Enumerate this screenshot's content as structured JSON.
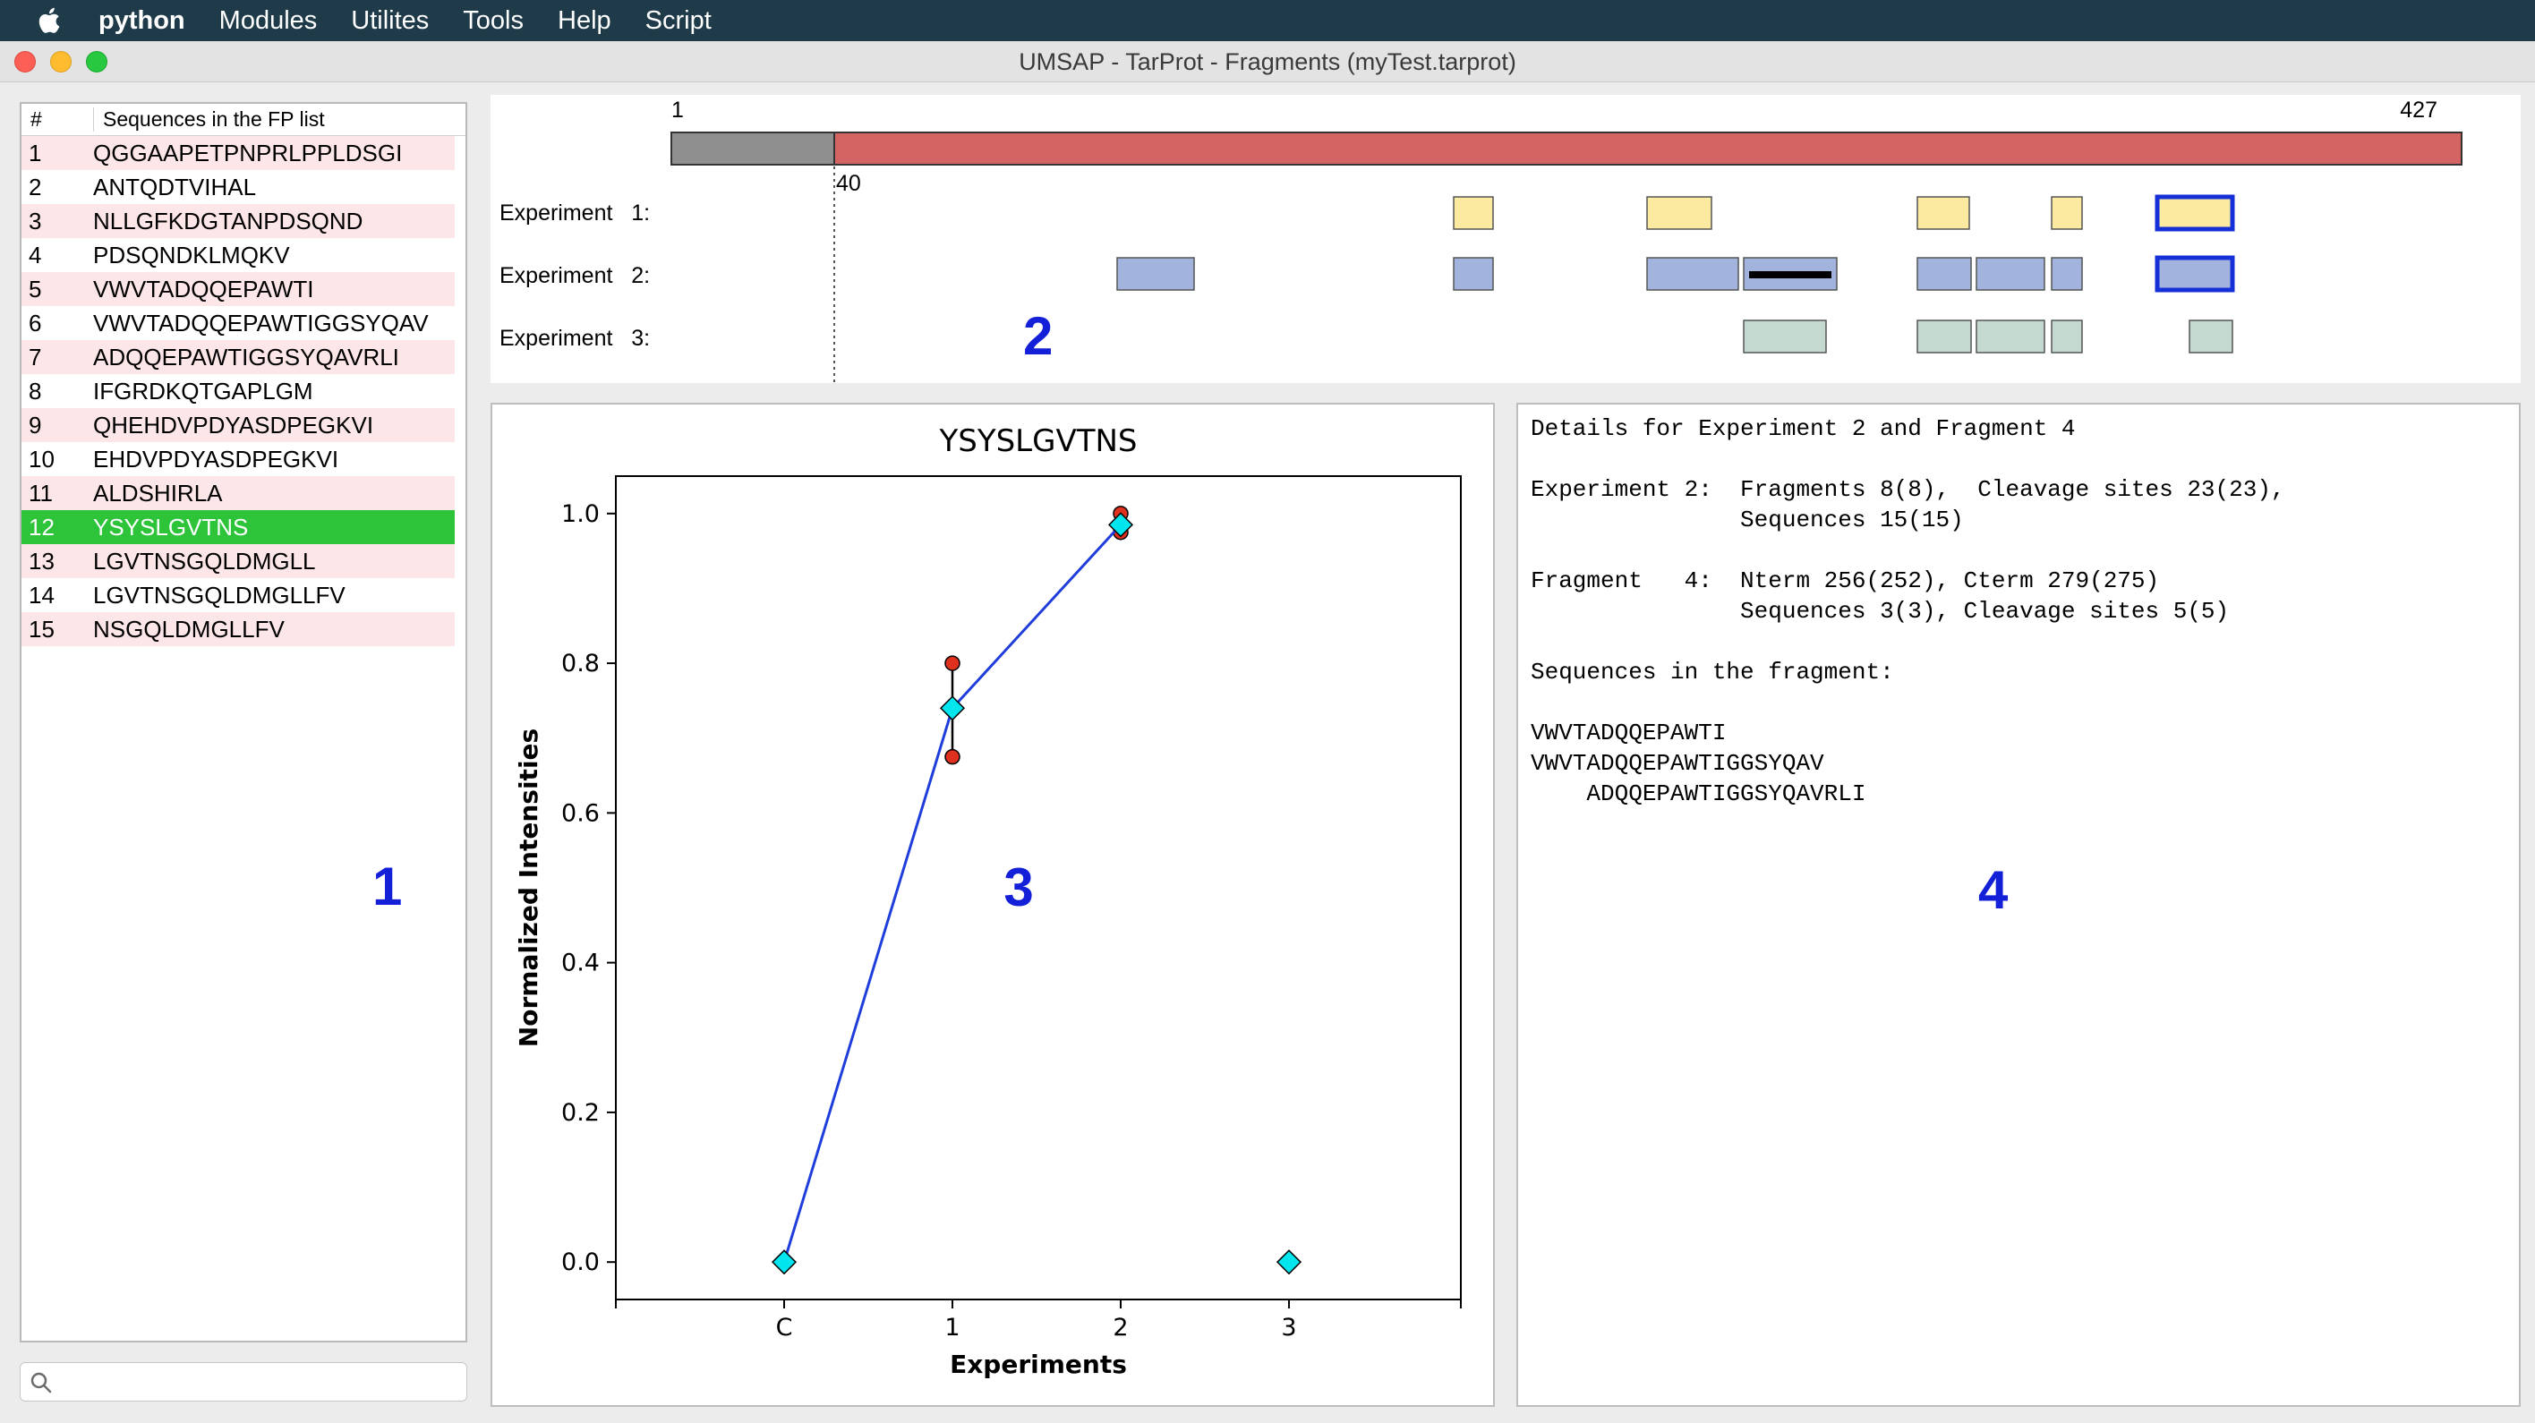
{
  "menubar": {
    "app_name": "python",
    "items": [
      "Modules",
      "Utilites",
      "Tools",
      "Help",
      "Script"
    ]
  },
  "window": {
    "title": "UMSAP - TarProt - Fragments (myTest.tarprot)"
  },
  "seq_list": {
    "header_num": "#",
    "header_seq": "Sequences in the FP list",
    "selected_index": 12,
    "rows": [
      {
        "num": "1",
        "seq": "QGGAAPETPNPRLPPLDSGI"
      },
      {
        "num": "2",
        "seq": "ANTQDTVIHAL"
      },
      {
        "num": "3",
        "seq": "NLLGFKDGTANPDSQND"
      },
      {
        "num": "4",
        "seq": "PDSQNDKLMQKV"
      },
      {
        "num": "5",
        "seq": "VWVTADQQEPAWTI"
      },
      {
        "num": "6",
        "seq": "VWVTADQQEPAWTIGGSYQAV"
      },
      {
        "num": "7",
        "seq": "ADQQEPAWTIGGSYQAVRLI"
      },
      {
        "num": "8",
        "seq": "IFGRDKQTGAPLGM"
      },
      {
        "num": "9",
        "seq": "QHEHDVPDYASDPEGKVI"
      },
      {
        "num": "10",
        "seq": "EHDVPDYASDPEGKVI"
      },
      {
        "num": "11",
        "seq": "ALDSHIRLA"
      },
      {
        "num": "12",
        "seq": "YSYSLGVTNS"
      },
      {
        "num": "13",
        "seq": "LGVTNSGQLDMGLL"
      },
      {
        "num": "14",
        "seq": "LGVTNSGQLDMGLLFV"
      },
      {
        "num": "15",
        "seq": "NSGQLDMGLLFV"
      }
    ]
  },
  "search": {
    "placeholder": ""
  },
  "fragments": {
    "protein_start": "1",
    "protein_end": "427",
    "native_start": "40",
    "rec_color": "#d46363",
    "nat_color": "#8f8f8f",
    "experiments": [
      {
        "label": "Experiment   1:",
        "color": "#fbeaa0"
      },
      {
        "label": "Experiment   2:",
        "color": "#a2b4dd"
      },
      {
        "label": "Experiment   3:",
        "color": "#c4d9cf"
      }
    ]
  },
  "panel_labels": {
    "p1": "1",
    "p2": "2",
    "p3": "3",
    "p4": "4"
  },
  "chart_data": {
    "type": "line",
    "title": "YSYSLGVTNS",
    "xlabel": "Experiments",
    "ylabel": "Normalized Intensities",
    "categories": [
      "C",
      "1",
      "2",
      "3"
    ],
    "ylim": [
      -0.05,
      1.05
    ],
    "yticks": [
      "0.0",
      "0.2",
      "0.4",
      "0.6",
      "0.8",
      "1.0"
    ],
    "series": [
      {
        "values": [
          0.0,
          0.74,
          0.985,
          null
        ],
        "color": "#1f3ddb",
        "marker": "diamond",
        "marker_color": "#00e5ee"
      }
    ],
    "isolated_points": [
      {
        "x": "3",
        "y": 0.0
      }
    ],
    "error_points": [
      {
        "x": "1",
        "values": [
          0.8,
          0.675
        ]
      },
      {
        "x": "2",
        "values": [
          1.0,
          0.975
        ]
      }
    ],
    "grid": false
  },
  "details": {
    "lines": [
      "Details for Experiment 2 and Fragment 4",
      "",
      "Experiment 2:  Fragments 8(8),  Cleavage sites 23(23),",
      "               Sequences 15(15)",
      "",
      "Fragment   4:  Nterm 256(252), Cterm 279(275)",
      "               Sequences 3(3), Cleavage sites 5(5)",
      "",
      "Sequences in the fragment:",
      "",
      "VWVTADQQEPAWTI",
      "VWVTADQQEPAWTIGGSYQAV",
      "    ADQQEPAWTIGGSYQAVRLI"
    ]
  }
}
